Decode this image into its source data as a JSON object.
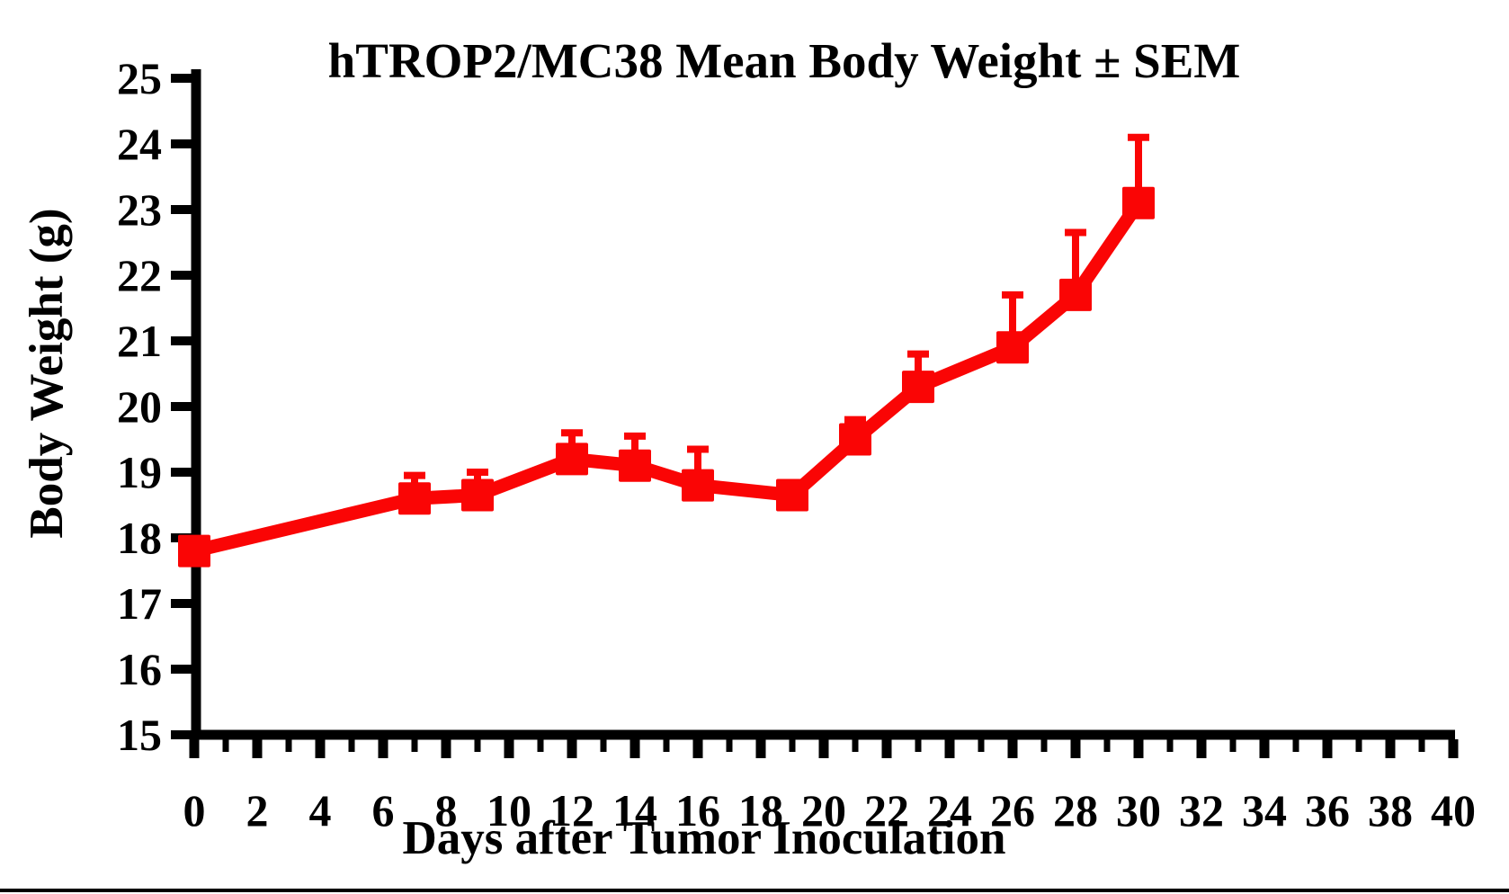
{
  "chart_data": {
    "type": "line",
    "title": "hTROP2/MC38 Mean Body Weight ± SEM",
    "xlabel": "Days after Tumor Inoculation",
    "ylabel": "Body Weight (g)",
    "xlim": [
      0,
      40
    ],
    "ylim": [
      15,
      25
    ],
    "x_tick_labels": [
      "0",
      "2",
      "4",
      "6",
      "8",
      "10",
      "12",
      "14",
      "16",
      "18",
      "20",
      "22",
      "24",
      "26",
      "28",
      "30",
      "32",
      "34",
      "36",
      "38",
      "40"
    ],
    "x_minor_tick_step": 1,
    "y_tick_labels": [
      "15",
      "16",
      "17",
      "18",
      "19",
      "20",
      "21",
      "22",
      "23",
      "24",
      "25"
    ],
    "grid": false,
    "legend_position": "none",
    "error_bars": "upper SEM only",
    "series": [
      {
        "color": "#FA0505",
        "marker": "square",
        "x": [
          0,
          7,
          9,
          12,
          14,
          16,
          19,
          21,
          23,
          26,
          28,
          30
        ],
        "y": [
          17.8,
          18.6,
          18.65,
          19.2,
          19.1,
          18.8,
          18.65,
          19.5,
          20.3,
          20.9,
          21.7,
          23.1
        ],
        "sem": [
          0,
          0.35,
          0.35,
          0.4,
          0.45,
          0.55,
          0,
          0.3,
          0.5,
          0.8,
          0.95,
          1.0
        ]
      }
    ]
  }
}
